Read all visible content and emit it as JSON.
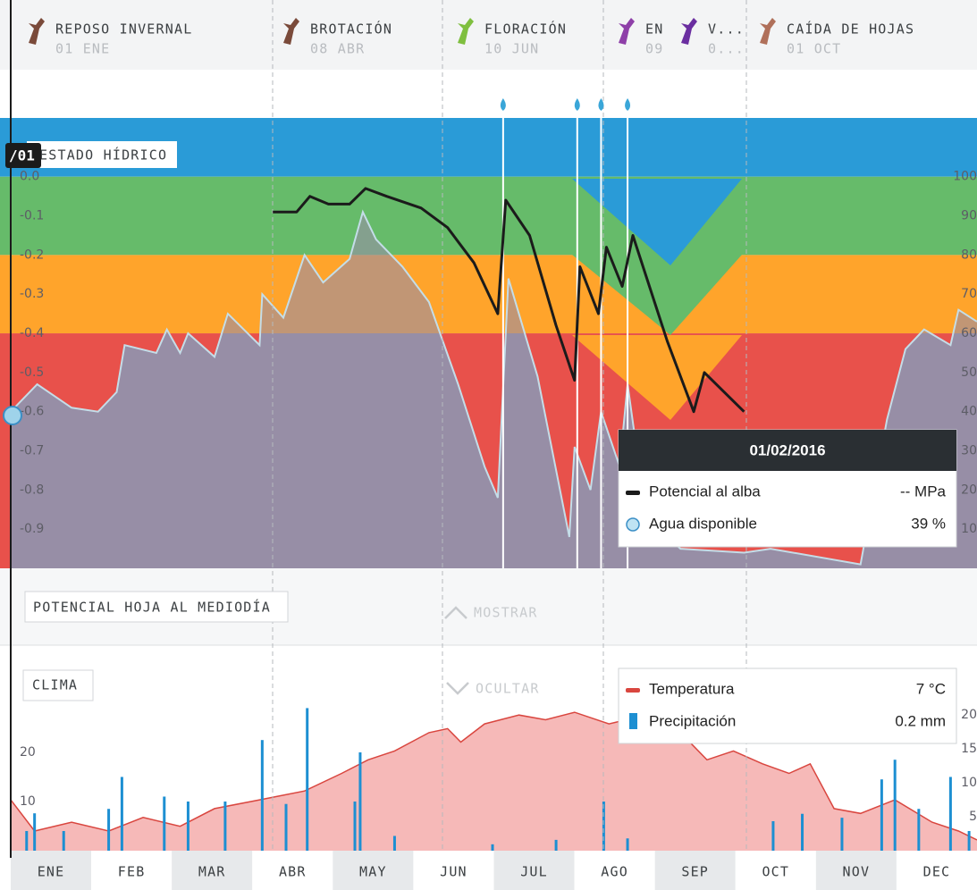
{
  "phases": [
    {
      "name": "REPOSO INVERNAL",
      "date": "01 ENE"
    },
    {
      "name": "BROTACIÓN",
      "date": "08 ABR"
    },
    {
      "name": "FLORACIÓN",
      "date": "10 JUN"
    },
    {
      "name": "EN",
      "date": "09"
    },
    {
      "name": "V...",
      "date": "0..."
    },
    {
      "name": "CAÍDA DE HOJAS",
      "date": "01 OCT"
    }
  ],
  "months": [
    "ENE",
    "FEB",
    "MAR",
    "ABR",
    "MAY",
    "JUN",
    "JUL",
    "AGO",
    "SEP",
    "OCT",
    "NOV",
    "DEC"
  ],
  "chart_data": [
    {
      "type": "line",
      "title": "ESTADO HÍDRICO",
      "cursor_label": "/01",
      "xlim": [
        1,
        366
      ],
      "ylim": [
        -1.0,
        0.15
      ],
      "yticks": [
        {
          "value": 0,
          "label": "0.0"
        },
        -0.1,
        -0.2,
        -0.3,
        -0.4,
        -0.5,
        -0.6,
        -0.7,
        -0.8,
        -0.9
      ],
      "y2lim": [
        0,
        115
      ],
      "y2ticks": [
        10,
        20,
        30,
        40,
        50,
        60,
        70,
        80,
        90,
        100
      ],
      "bands": [
        {
          "from": 0,
          "to": 0.15,
          "color": "#2a9bd7"
        },
        {
          "from": -0.2,
          "to": 0,
          "color": "#66bb6a"
        },
        {
          "from": -0.4,
          "to": -0.2,
          "color": "#ffa42b"
        },
        {
          "from": -1.0,
          "to": -0.4,
          "color": "#e8514b"
        }
      ],
      "irrigation_x": [
        187,
        215,
        224,
        234
      ],
      "series": [
        {
          "name": "Potencial al alba",
          "color": "#1b1b1b",
          "x": [
            100,
            109,
            114,
            121,
            129,
            135,
            143,
            156,
            166,
            176,
            185,
            188,
            197,
            207,
            214,
            216,
            223,
            226,
            232,
            236,
            249,
            259,
            263,
            278
          ],
          "values": [
            -0.09,
            -0.09,
            -0.05,
            -0.07,
            -0.07,
            -0.03,
            -0.05,
            -0.08,
            -0.13,
            -0.22,
            -0.35,
            -0.06,
            -0.15,
            -0.38,
            -0.52,
            -0.23,
            -0.35,
            -0.18,
            -0.28,
            -0.15,
            -0.42,
            -0.6,
            -0.5,
            -0.6
          ]
        },
        {
          "name": "Agua disponible",
          "color": "#978ea6",
          "axis": "y2",
          "x": [
            1,
            11,
            24,
            34,
            41,
            44,
            56,
            60,
            65,
            68,
            78,
            83,
            95,
            96,
            104,
            112,
            119,
            129,
            134,
            139,
            149,
            159,
            170,
            180,
            185,
            189,
            200,
            212,
            214,
            220,
            224,
            231,
            234,
            241,
            254,
            278,
            288,
            322,
            332,
            339,
            346,
            356,
            359,
            366
          ],
          "values": [
            40,
            47,
            41,
            40,
            45,
            57,
            55,
            61,
            55,
            60,
            54,
            65,
            57,
            70,
            64,
            80,
            73,
            79,
            91,
            84,
            77,
            68,
            47,
            26,
            18,
            74,
            49,
            8,
            31,
            20,
            40,
            26,
            47,
            13,
            5,
            4,
            5,
            1,
            38,
            56,
            61,
            57,
            66,
            63
          ]
        }
      ],
      "tooltip": {
        "title": "01/02/2016",
        "values": [
          "-- MPa",
          "39 %"
        ]
      }
    },
    {
      "type": "bar",
      "title": "CLIMA",
      "xlim": [
        1,
        366
      ],
      "ylim": [
        0,
        41.8
      ],
      "yticks": [
        10,
        20
      ],
      "y2lim": [
        0,
        30.3
      ],
      "y2ticks": [
        5,
        10,
        15,
        20
      ],
      "series": [
        {
          "name": "Temperatura",
          "color": "#d9463f",
          "axis": "y2",
          "x": [
            1,
            10,
            24,
            38,
            51,
            65,
            78,
            95,
            112,
            126,
            136,
            146,
            159,
            166,
            171,
            180,
            193,
            203,
            214,
            227,
            241,
            254,
            264,
            274,
            285,
            295,
            303,
            312,
            322,
            335,
            349,
            359,
            366
          ],
          "values": [
            7.5,
            2.9,
            4.2,
            2.9,
            4.9,
            3.6,
            6.2,
            7.5,
            8.8,
            11.4,
            13.4,
            14.7,
            17.4,
            18,
            16,
            18.7,
            20,
            19.3,
            20.4,
            18.7,
            20,
            17.4,
            13.4,
            14.7,
            12.8,
            11.4,
            12.8,
            6.2,
            5.5,
            7.5,
            4.2,
            2.9,
            1.6
          ]
        },
        {
          "name": "Precipitación",
          "color": "#1d8fd2",
          "x": [
            7,
            10,
            21,
            38,
            43,
            59,
            68,
            82,
            96,
            105,
            113,
            131,
            133,
            146,
            183,
            207,
            225,
            234,
            289,
            300,
            315,
            330,
            335,
            344,
            356,
            363
          ],
          "values": [
            4,
            7.6,
            4,
            8.5,
            15,
            11,
            10,
            10,
            22.5,
            9.5,
            29,
            10,
            20,
            3,
            1.3,
            2.2,
            10,
            2.5,
            6,
            7.5,
            6.7,
            14.5,
            18.5,
            8.5,
            15,
            4
          ]
        }
      ],
      "tooltip": {
        "values": [
          "7 °C",
          "0.2 mm"
        ]
      }
    }
  ],
  "panel": {
    "title": "POTENCIAL HOJA AL MEDIODÍA",
    "toggle": "MOSTRAR"
  },
  "climate_toggle": "OCULTAR"
}
